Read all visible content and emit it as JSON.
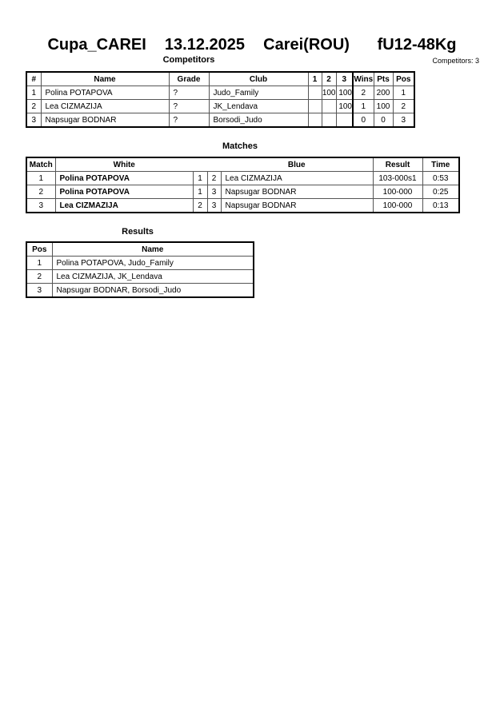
{
  "title": "Cupa_CAREI  13.12.2025  Carei(ROU)   fU12-48Kg",
  "competitors": {
    "heading": "Competitors",
    "count_label": "Competitors: 3",
    "columns": [
      "#",
      "Name",
      "Grade",
      "Club",
      "1",
      "2",
      "3",
      "Wins",
      "Pts",
      "Pos"
    ],
    "rows": [
      [
        "1",
        "Polina POTAPOVA",
        "?",
        "Judo_Family",
        "",
        "100",
        "100",
        "2",
        "200",
        "1"
      ],
      [
        "2",
        "Lea CIZMAZIJA",
        "?",
        "JK_Lendava",
        "",
        "",
        "100",
        "1",
        "100",
        "2"
      ],
      [
        "3",
        "Napsugar BODNAR",
        "?",
        "Borsodi_Judo",
        "",
        "",
        "",
        "0",
        "0",
        "3"
      ]
    ]
  },
  "matches": {
    "heading": "Matches",
    "columns": [
      "Match",
      "White",
      "Blue",
      "Result",
      "Time"
    ],
    "rows": [
      [
        "1",
        "Polina POTAPOVA",
        "1",
        "2",
        "Lea CIZMAZIJA",
        "103-000s1",
        "0:53"
      ],
      [
        "2",
        "Polina POTAPOVA",
        "1",
        "3",
        "Napsugar BODNAR",
        "100-000",
        "0:25"
      ],
      [
        "3",
        "Lea CIZMAZIJA",
        "2",
        "3",
        "Napsugar BODNAR",
        "100-000",
        "0:13"
      ]
    ]
  },
  "results": {
    "heading": "Results",
    "columns": [
      "Pos",
      "Name"
    ],
    "rows": [
      [
        "1",
        "Polina POTAPOVA, Judo_Family"
      ],
      [
        "2",
        "Lea CIZMAZIJA, JK_Lendava"
      ],
      [
        "3",
        "Napsugar BODNAR, Borsodi_Judo"
      ]
    ]
  }
}
